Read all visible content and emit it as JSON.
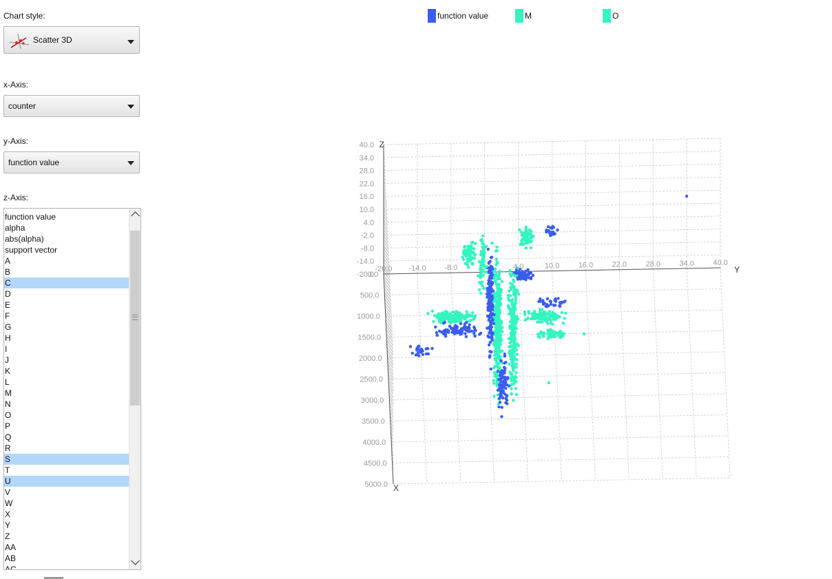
{
  "sidebar": {
    "style_label": "Chart style:",
    "style_value": "Scatter 3D",
    "x_label": "x-Axis:",
    "x_value": "counter",
    "y_label": "y-Axis:",
    "y_value": "function value",
    "z_label": "z-Axis:",
    "z_items": [
      {
        "label": "function value",
        "selected": false
      },
      {
        "label": "alpha",
        "selected": false
      },
      {
        "label": "abs(alpha)",
        "selected": false
      },
      {
        "label": "support vector",
        "selected": false
      },
      {
        "label": "A",
        "selected": false
      },
      {
        "label": "B",
        "selected": false
      },
      {
        "label": "C",
        "selected": true
      },
      {
        "label": "D",
        "selected": false
      },
      {
        "label": "E",
        "selected": false
      },
      {
        "label": "F",
        "selected": false
      },
      {
        "label": "G",
        "selected": false
      },
      {
        "label": "H",
        "selected": false
      },
      {
        "label": "I",
        "selected": false
      },
      {
        "label": "J",
        "selected": false
      },
      {
        "label": "K",
        "selected": false
      },
      {
        "label": "L",
        "selected": false
      },
      {
        "label": "M",
        "selected": false
      },
      {
        "label": "N",
        "selected": false
      },
      {
        "label": "O",
        "selected": false
      },
      {
        "label": "P",
        "selected": false
      },
      {
        "label": "Q",
        "selected": false
      },
      {
        "label": "R",
        "selected": false
      },
      {
        "label": "S",
        "selected": true
      },
      {
        "label": "T",
        "selected": false
      },
      {
        "label": "U",
        "selected": true
      },
      {
        "label": "V",
        "selected": false
      },
      {
        "label": "W",
        "selected": false
      },
      {
        "label": "X",
        "selected": false
      },
      {
        "label": "Y",
        "selected": false
      },
      {
        "label": "Z",
        "selected": false
      },
      {
        "label": "AA",
        "selected": false
      },
      {
        "label": "AB",
        "selected": false
      },
      {
        "label": "AC",
        "selected": false
      }
    ]
  },
  "colors": {
    "series_blue": "#3a5df0",
    "series_teal": "#33f5bf",
    "grid": "#c8c8c8",
    "axis": "#555555",
    "tick_text": "#999999"
  },
  "chart_data": {
    "type": "scatter",
    "subtype": "3d",
    "title": "",
    "xlabel": "X",
    "ylabel": "Y",
    "zlabel": "Z",
    "series": [
      {
        "name": "function value",
        "color": "#3a5df0"
      },
      {
        "name": "M",
        "color": "#33f5bf"
      },
      {
        "name": "O",
        "color": "#33f5bf"
      }
    ],
    "x_axis": {
      "range": [
        0,
        5000
      ],
      "ticks": [
        "0.0",
        "500.0",
        "1000.0",
        "1500.0",
        "2000.0",
        "2500.0",
        "3000.0",
        "3500.0",
        "4000.0",
        "4500.0",
        "5000.0"
      ]
    },
    "y_axis": {
      "range": [
        -20,
        40
      ],
      "ticks": [
        "-20.0",
        "-14.0",
        "-8.0",
        "-2.0",
        "4.0",
        "10.0",
        "16.0",
        "22.0",
        "28.0",
        "34.0",
        "40.0"
      ]
    },
    "z_axis": {
      "range": [
        -20,
        40
      ],
      "ticks": [
        "-20.0",
        "-14.0",
        "-8.0",
        "-2.0",
        "4.0",
        "10.0",
        "16.0",
        "22.0",
        "28.0",
        "34.0",
        "40.0"
      ]
    },
    "grid": true,
    "legend_position": "top"
  }
}
